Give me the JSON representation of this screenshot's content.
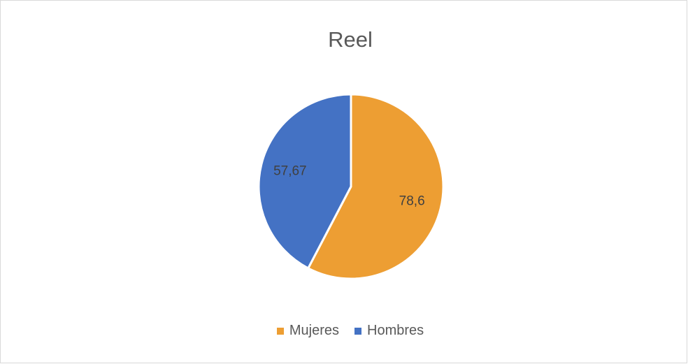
{
  "chart_data": {
    "type": "pie",
    "title": "Reel",
    "categories": [
      "Mujeres",
      "Hombres"
    ],
    "values": [
      78.6,
      57.67
    ],
    "data_labels": [
      "78,6",
      "57,67"
    ],
    "colors": [
      "#ED9E33",
      "#4472C4"
    ],
    "start_angle_deg": 0,
    "direction": "clockwise",
    "legend_position": "bottom"
  }
}
